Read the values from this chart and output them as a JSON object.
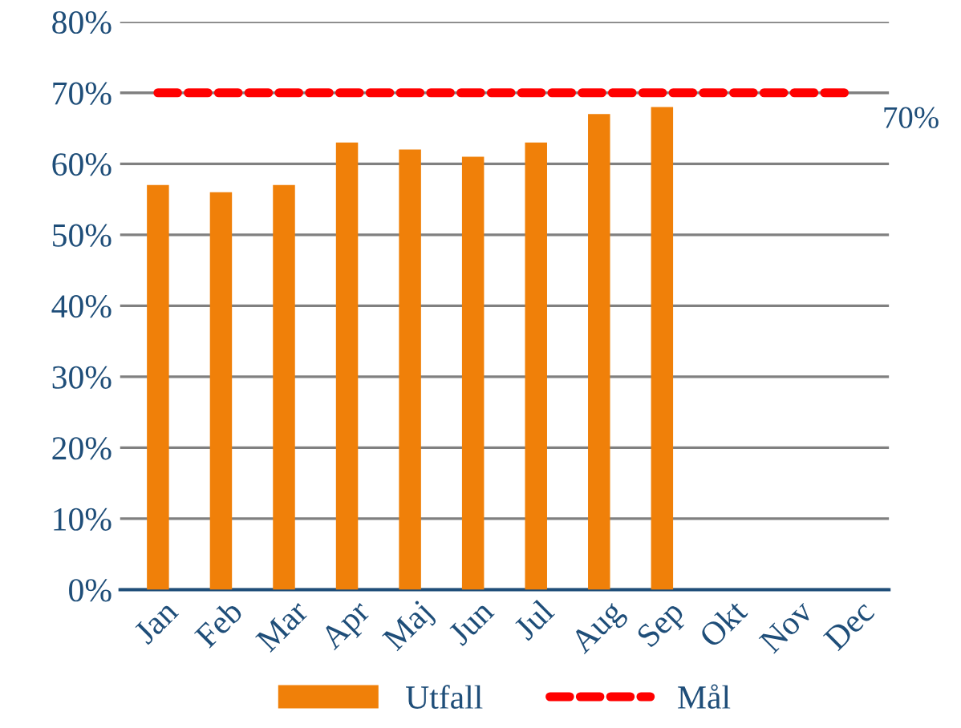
{
  "chart_data": {
    "type": "bar",
    "categories": [
      "Jan",
      "Feb",
      "Mar",
      "Apr",
      "Maj",
      "Jun",
      "Jul",
      "Aug",
      "Sep",
      "Okt",
      "Nov",
      "Dec"
    ],
    "series": [
      {
        "name": "Utfall",
        "color": "#f08009",
        "values": [
          57,
          56,
          57,
          63,
          62,
          61,
          63,
          67,
          68,
          null,
          null,
          null
        ]
      },
      {
        "name": "Mål",
        "type": "line",
        "color": "#ff0000",
        "line_style": "dashed",
        "values": [
          70,
          70,
          70,
          70,
          70,
          70,
          70,
          70,
          70,
          70,
          70,
          70
        ],
        "value_labels": [
          null,
          null,
          null,
          null,
          null,
          null,
          null,
          null,
          null,
          null,
          null,
          "70%"
        ]
      }
    ],
    "ylim": [
      0,
      80
    ],
    "yticks": [
      {
        "value": 0,
        "label": "0%"
      },
      {
        "value": 10,
        "label": "10%"
      },
      {
        "value": 20,
        "label": "20%"
      },
      {
        "value": 30,
        "label": "30%"
      },
      {
        "value": 40,
        "label": "40%"
      },
      {
        "value": 50,
        "label": "50%"
      },
      {
        "value": 60,
        "label": "60%"
      },
      {
        "value": 70,
        "label": "70%"
      },
      {
        "value": 80,
        "label": "80%"
      }
    ],
    "grid": "y",
    "legend": "bottom"
  }
}
